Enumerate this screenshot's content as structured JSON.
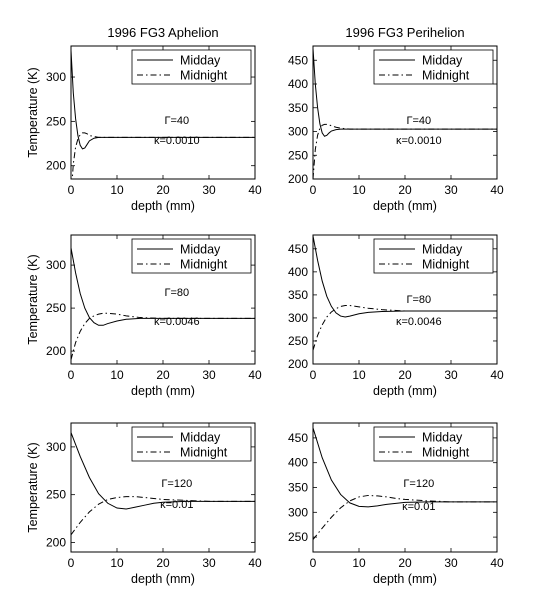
{
  "chart_data": [
    {
      "type": "line",
      "title": "1996 FG3 Aphelion",
      "xlabel": "depth (mm)",
      "ylabel": "Temperature (K)",
      "xlim": [
        0,
        40
      ],
      "ylim": [
        185,
        335
      ],
      "x_ticks": [
        "0",
        "10",
        "20",
        "30",
        "40"
      ],
      "y_ticks": [
        "200",
        "250",
        "300"
      ],
      "legend_position": "top-right",
      "annotations": [
        "Γ=40",
        "κ=0.0010"
      ],
      "series": [
        {
          "name": "Midday",
          "style": "solid",
          "x": [
            0,
            0.5,
            1,
            1.5,
            2,
            2.5,
            3,
            3.5,
            4,
            5,
            6,
            7,
            8,
            10,
            15,
            20,
            30,
            40
          ],
          "y": [
            330,
            282,
            253,
            234,
            223,
            219,
            220,
            224,
            228,
            231,
            232,
            232,
            232,
            232,
            232,
            232,
            232,
            232
          ]
        },
        {
          "name": "Midnight",
          "style": "dashdot",
          "x": [
            0,
            0.5,
            1,
            1.5,
            2,
            2.5,
            3,
            3.5,
            4,
            5,
            6,
            7,
            8,
            10,
            15,
            20,
            30,
            40
          ],
          "y": [
            163,
            202,
            221,
            230,
            235,
            237,
            237,
            236,
            234,
            233,
            232,
            232,
            232,
            232,
            232,
            232,
            232,
            232
          ]
        }
      ]
    },
    {
      "type": "line",
      "title": "1996 FG3 Perihelion",
      "xlabel": "depth (mm)",
      "ylabel": "",
      "xlim": [
        0,
        40
      ],
      "ylim": [
        200,
        480
      ],
      "x_ticks": [
        "0",
        "10",
        "20",
        "30",
        "40"
      ],
      "y_ticks": [
        "200",
        "250",
        "300",
        "350",
        "400",
        "450"
      ],
      "legend_position": "top-right",
      "annotations": [
        "Γ=40",
        "κ=0.0010"
      ],
      "series": [
        {
          "name": "Midday",
          "style": "solid",
          "x": [
            0,
            0.5,
            1,
            1.5,
            2,
            2.5,
            3,
            3.5,
            4,
            5,
            6,
            7,
            8,
            10,
            15,
            20,
            30,
            40
          ],
          "y": [
            475,
            400,
            350,
            316,
            297,
            290,
            292,
            297,
            301,
            304,
            305,
            305,
            305,
            305,
            305,
            305,
            305,
            305
          ]
        },
        {
          "name": "Midnight",
          "style": "dashdot",
          "x": [
            0,
            0.5,
            1,
            1.5,
            2,
            2.5,
            3,
            3.5,
            4,
            5,
            6,
            7,
            8,
            10,
            15,
            20,
            30,
            40
          ],
          "y": [
            200,
            262,
            292,
            307,
            313,
            315,
            315,
            314,
            312,
            309,
            307,
            306,
            305,
            305,
            305,
            305,
            305,
            305
          ]
        }
      ]
    },
    {
      "type": "line",
      "title": "",
      "xlabel": "depth (mm)",
      "ylabel": "Temperature (K)",
      "xlim": [
        0,
        40
      ],
      "ylim": [
        185,
        335
      ],
      "x_ticks": [
        "0",
        "10",
        "20",
        "30",
        "40"
      ],
      "y_ticks": [
        "200",
        "250",
        "300"
      ],
      "legend_position": "top-right",
      "annotations": [
        "Γ=80",
        "κ=0.0046"
      ],
      "series": [
        {
          "name": "Midday",
          "style": "solid",
          "x": [
            0,
            1,
            2,
            3,
            4,
            5,
            6,
            7,
            8,
            10,
            12,
            15,
            20,
            25,
            30,
            40
          ],
          "y": [
            320,
            291,
            267,
            250,
            239,
            233,
            230,
            230,
            232,
            235,
            237,
            238,
            238,
            238,
            238,
            238
          ]
        },
        {
          "name": "Midnight",
          "style": "dashdot",
          "x": [
            0,
            1,
            2,
            3,
            4,
            5,
            6,
            7,
            8,
            10,
            12,
            15,
            20,
            25,
            30,
            40
          ],
          "y": [
            190,
            210,
            223,
            232,
            238,
            241,
            243,
            244,
            244,
            243,
            241,
            239,
            238,
            238,
            238,
            238
          ]
        }
      ]
    },
    {
      "type": "line",
      "title": "",
      "xlabel": "depth (mm)",
      "ylabel": "",
      "xlim": [
        0,
        40
      ],
      "ylim": [
        200,
        480
      ],
      "x_ticks": [
        "0",
        "10",
        "20",
        "30",
        "40"
      ],
      "y_ticks": [
        "200",
        "250",
        "300",
        "350",
        "400",
        "450"
      ],
      "legend_position": "top-right",
      "annotations": [
        "Γ=80",
        "κ=0.0046"
      ],
      "series": [
        {
          "name": "Midday",
          "style": "solid",
          "x": [
            0,
            1,
            2,
            3,
            4,
            5,
            6,
            7,
            8,
            10,
            12,
            15,
            20,
            25,
            30,
            40
          ],
          "y": [
            478,
            425,
            380,
            347,
            325,
            311,
            304,
            302,
            304,
            309,
            312,
            314,
            315,
            315,
            315,
            315
          ]
        },
        {
          "name": "Midnight",
          "style": "dashdot",
          "x": [
            0,
            1,
            2,
            3,
            4,
            5,
            6,
            7,
            8,
            10,
            12,
            15,
            20,
            25,
            30,
            40
          ],
          "y": [
            230,
            262,
            285,
            302,
            313,
            320,
            325,
            327,
            327,
            324,
            321,
            318,
            315,
            315,
            315,
            315
          ]
        }
      ]
    },
    {
      "type": "line",
      "title": "",
      "xlabel": "depth (mm)",
      "ylabel": "Temperature (K)",
      "xlim": [
        0,
        40
      ],
      "ylim": [
        190,
        325
      ],
      "x_ticks": [
        "0",
        "10",
        "20",
        "30",
        "40"
      ],
      "y_ticks": [
        "200",
        "250",
        "300"
      ],
      "legend_position": "top-right",
      "annotations": [
        "Γ=120",
        "κ=0.01"
      ],
      "series": [
        {
          "name": "Midday",
          "style": "solid",
          "x": [
            0,
            2,
            4,
            6,
            8,
            10,
            12,
            14,
            16,
            18,
            20,
            25,
            30,
            40
          ],
          "y": [
            315,
            290,
            268,
            251,
            241,
            236,
            235,
            237,
            239,
            241,
            242,
            243,
            243,
            243
          ]
        },
        {
          "name": "Midnight",
          "style": "dashdot",
          "x": [
            0,
            2,
            4,
            6,
            8,
            10,
            12,
            14,
            16,
            18,
            20,
            25,
            30,
            40
          ],
          "y": [
            208,
            221,
            232,
            240,
            245,
            247,
            248,
            248,
            247,
            246,
            245,
            244,
            243,
            243
          ]
        }
      ]
    },
    {
      "type": "line",
      "title": "",
      "xlabel": "depth (mm)",
      "ylabel": "",
      "xlim": [
        0,
        40
      ],
      "ylim": [
        220,
        480
      ],
      "x_ticks": [
        "0",
        "10",
        "20",
        "30",
        "40"
      ],
      "y_ticks": [
        "250",
        "300",
        "350",
        "400",
        "450"
      ],
      "legend_position": "top-right",
      "annotations": [
        "Γ=120",
        "κ=0.01"
      ],
      "series": [
        {
          "name": "Midday",
          "style": "solid",
          "x": [
            0,
            2,
            4,
            6,
            8,
            10,
            12,
            14,
            16,
            18,
            20,
            25,
            30,
            40
          ],
          "y": [
            470,
            410,
            365,
            336,
            319,
            312,
            311,
            313,
            316,
            318,
            320,
            321,
            321,
            321
          ]
        },
        {
          "name": "Midnight",
          "style": "dashdot",
          "x": [
            0,
            2,
            4,
            6,
            8,
            10,
            12,
            14,
            16,
            18,
            20,
            25,
            30,
            40
          ],
          "y": [
            245,
            268,
            290,
            309,
            323,
            331,
            334,
            333,
            331,
            328,
            326,
            323,
            321,
            321
          ]
        }
      ]
    }
  ]
}
